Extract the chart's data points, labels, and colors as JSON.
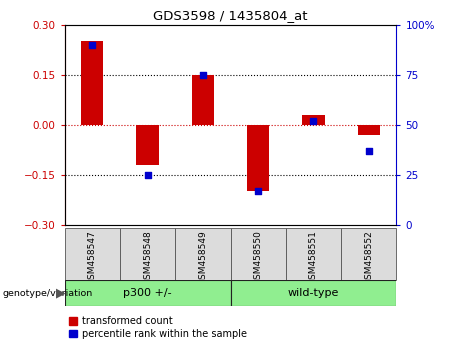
{
  "title": "GDS3598 / 1435804_at",
  "samples": [
    "GSM458547",
    "GSM458548",
    "GSM458549",
    "GSM458550",
    "GSM458551",
    "GSM458552"
  ],
  "red_bars": [
    0.25,
    -0.12,
    0.15,
    -0.2,
    0.03,
    -0.03
  ],
  "blue_dots": [
    90,
    25,
    75,
    17,
    52,
    37
  ],
  "ylim_left": [
    -0.3,
    0.3
  ],
  "ylim_right": [
    0,
    100
  ],
  "yticks_left": [
    -0.3,
    -0.15,
    0,
    0.15,
    0.3
  ],
  "yticks_right": [
    0,
    25,
    50,
    75,
    100
  ],
  "group_label": "genotype/variation",
  "legend_red": "transformed count",
  "legend_blue": "percentile rank within the sample",
  "bar_color": "#CC0000",
  "dot_color": "#0000CC",
  "sample_bg_color": "#DCDCDC",
  "group_color": "#90EE90",
  "plot_bg": "#FFFFFF",
  "bar_width": 0.4,
  "p300_label": "p300 +/-",
  "wt_label": "wild-type"
}
